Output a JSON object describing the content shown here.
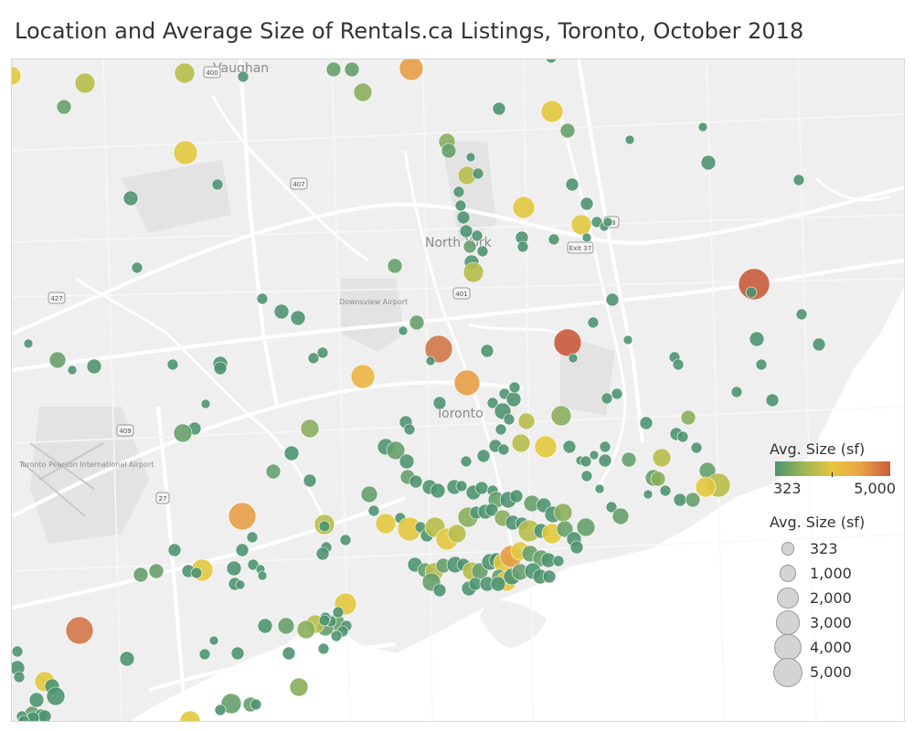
{
  "title": "Location and Average Size of Rentals.ca Listings, Toronto, October 2018",
  "map": {
    "place_labels": [
      {
        "name": "vaughan-label",
        "text": "Vaughan"
      },
      {
        "name": "north-york-label",
        "text": "North York"
      },
      {
        "name": "downsview-label",
        "text": "Downsview Airport"
      },
      {
        "name": "toronto-label",
        "text": "Toronto"
      },
      {
        "name": "pearson-label",
        "text": "Toronto Pearson International Airport"
      }
    ],
    "highway_shields": [
      "400",
      "407",
      "409",
      "427",
      "401",
      "27",
      "Exit 37",
      "18"
    ],
    "colors": {
      "land": "#efefef",
      "water": "#ffffff",
      "road": "#ffffff",
      "marker_min": "#4e9470",
      "marker_mid": "#e9c53e",
      "marker_max": "#c95b3b"
    }
  },
  "legend_color": {
    "title": "Avg. Size (sf)",
    "min_label": "323",
    "max_label": "5,000",
    "gradient": [
      "#4e9470",
      "#9cb653",
      "#e9c53e",
      "#eaa245",
      "#c95b3b"
    ]
  },
  "legend_size": {
    "title": "Avg. Size (sf)",
    "items": [
      {
        "label": "323",
        "value": 323
      },
      {
        "label": "1,000",
        "value": 1000
      },
      {
        "label": "2,000",
        "value": 2000
      },
      {
        "label": "3,000",
        "value": 3000
      },
      {
        "label": "4,000",
        "value": 4000
      },
      {
        "label": "5,000",
        "value": 5000
      }
    ]
  }
}
